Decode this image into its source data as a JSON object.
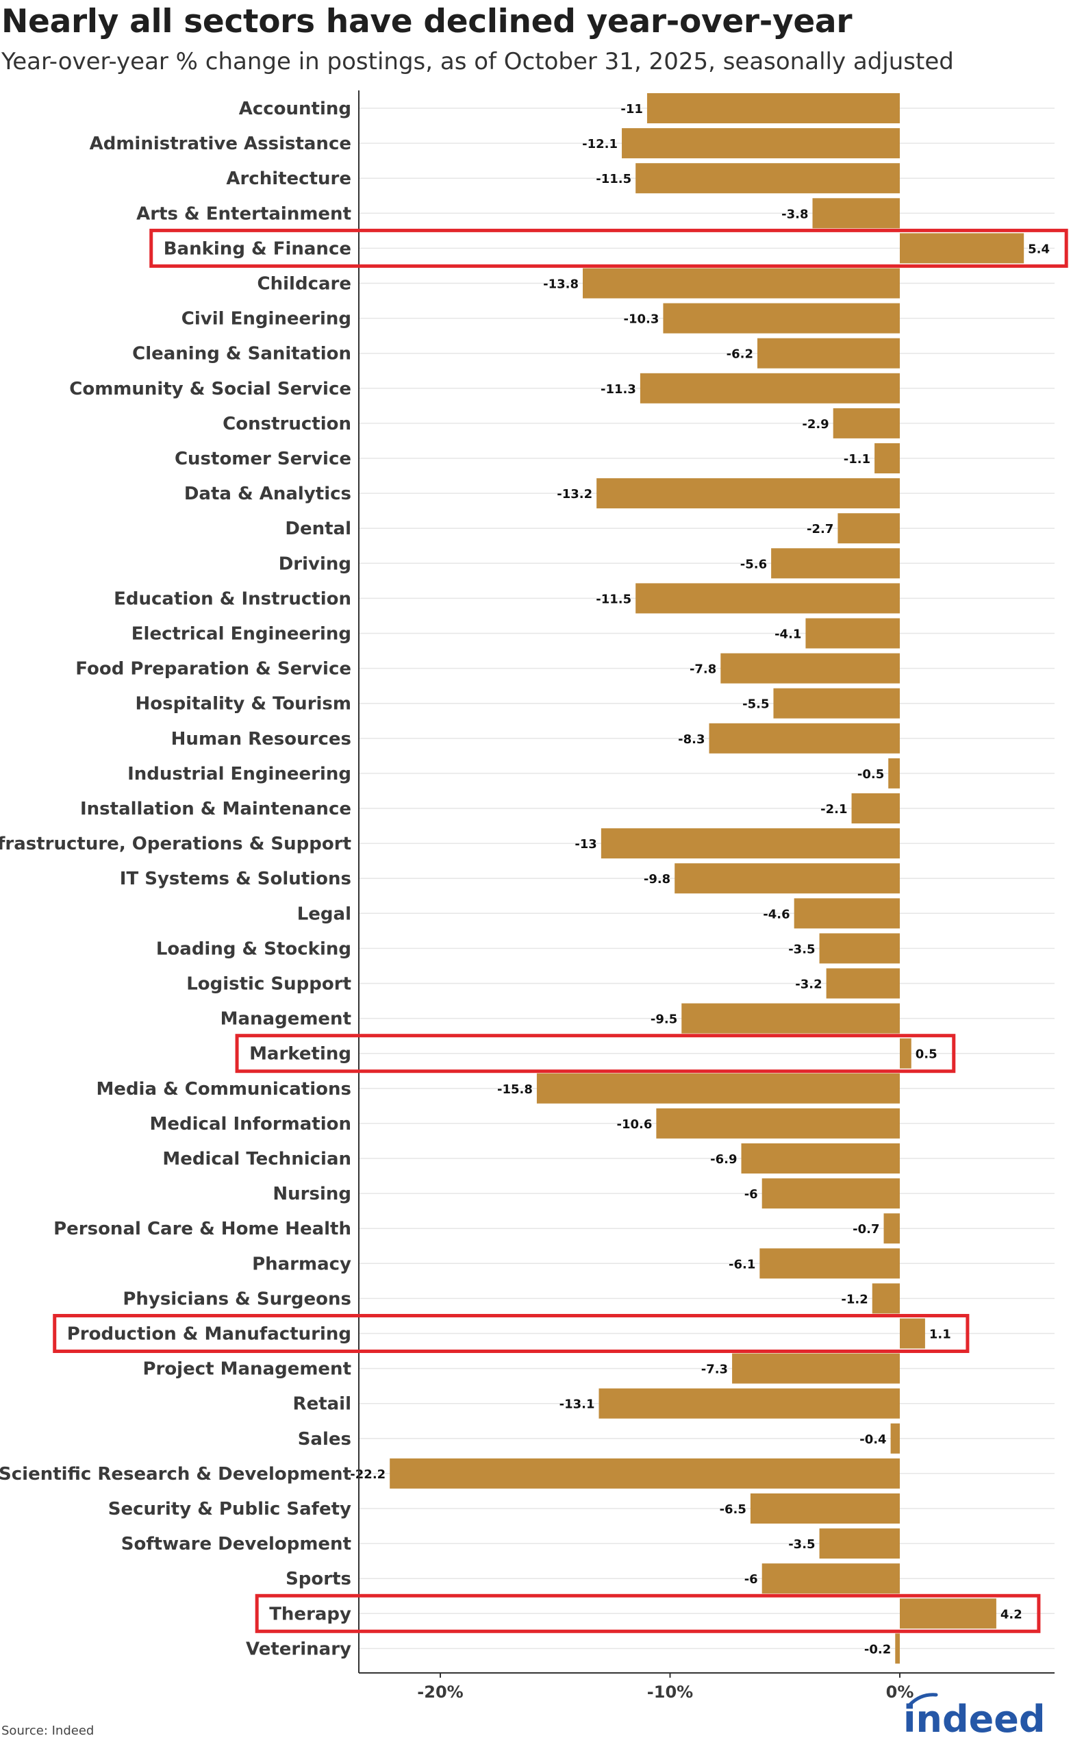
{
  "title": "Nearly all sectors have declined year-over-year",
  "subtitle": "Year-over-year % change in postings, as of October 31, 2025, seasonally adjusted",
  "source": "Source: Indeed",
  "logo_text": "indeed",
  "colors": {
    "bar": "#C08B3B",
    "highlight": "#E3262B",
    "grid": "#e6e6e6",
    "axis": "#333333"
  },
  "chart_data": {
    "type": "bar",
    "orientation": "horizontal",
    "title": "Nearly all sectors have declined year-over-year",
    "subtitle": "Year-over-year % change in postings, as of October 31, 2025, seasonally adjusted",
    "xlim": [
      -23.5,
      6.8
    ],
    "xticks": [
      {
        "value": -20,
        "label": "-20%"
      },
      {
        "value": -10,
        "label": "-10%"
      },
      {
        "value": 0,
        "label": "0%"
      }
    ],
    "grid": true,
    "categories": [
      "Accounting",
      "Administrative Assistance",
      "Architecture",
      "Arts & Entertainment",
      "Banking & Finance",
      "Childcare",
      "Civil Engineering",
      "Cleaning & Sanitation",
      "Community & Social Service",
      "Construction",
      "Customer Service",
      "Data & Analytics",
      "Dental",
      "Driving",
      "Education & Instruction",
      "Electrical Engineering",
      "Food Preparation & Service",
      "Hospitality & Tourism",
      "Human Resources",
      "Industrial Engineering",
      "Installation & Maintenance",
      "IT Infrastructure, Operations & Support",
      "IT Systems & Solutions",
      "Legal",
      "Loading & Stocking",
      "Logistic Support",
      "Management",
      "Marketing",
      "Media & Communications",
      "Medical Information",
      "Medical Technician",
      "Nursing",
      "Personal Care & Home Health",
      "Pharmacy",
      "Physicians & Surgeons",
      "Production & Manufacturing",
      "Project Management",
      "Retail",
      "Sales",
      "Scientific Research & Development",
      "Security & Public Safety",
      "Software Development",
      "Sports",
      "Therapy",
      "Veterinary"
    ],
    "values": [
      -11,
      -12.1,
      -11.5,
      -3.8,
      5.4,
      -13.8,
      -10.3,
      -6.2,
      -11.3,
      -2.9,
      -1.1,
      -13.2,
      -2.7,
      -5.6,
      -11.5,
      -4.1,
      -7.8,
      -5.5,
      -8.3,
      -0.5,
      -2.1,
      -13,
      -9.8,
      -4.6,
      -3.5,
      -3.2,
      -9.5,
      0.5,
      -15.8,
      -10.6,
      -6.9,
      -6,
      -0.7,
      -6.1,
      -1.2,
      1.1,
      -7.3,
      -13.1,
      -0.4,
      -22.2,
      -6.5,
      -3.5,
      -6,
      4.2,
      -0.2
    ],
    "value_labels": [
      "-11",
      "-12.1",
      "-11.5",
      "-3.8",
      "5.4",
      "-13.8",
      "-10.3",
      "-6.2",
      "-11.3",
      "-2.9",
      "-1.1",
      "-13.2",
      "-2.7",
      "-5.6",
      "-11.5",
      "-4.1",
      "-7.8",
      "-5.5",
      "-8.3",
      "-0.5",
      "-2.1",
      "-13",
      "-9.8",
      "-4.6",
      "-3.5",
      "-3.2",
      "-9.5",
      "0.5",
      "-15.8",
      "-10.6",
      "-6.9",
      "-6",
      "-0.7",
      "-6.1",
      "-1.2",
      "1.1",
      "-7.3",
      "-13.1",
      "-0.4",
      "-22.2",
      "-6.5",
      "-3.5",
      "-6",
      "4.2",
      "-0.2"
    ],
    "highlighted": [
      "Banking & Finance",
      "Marketing",
      "Production & Manufacturing",
      "Therapy"
    ]
  }
}
